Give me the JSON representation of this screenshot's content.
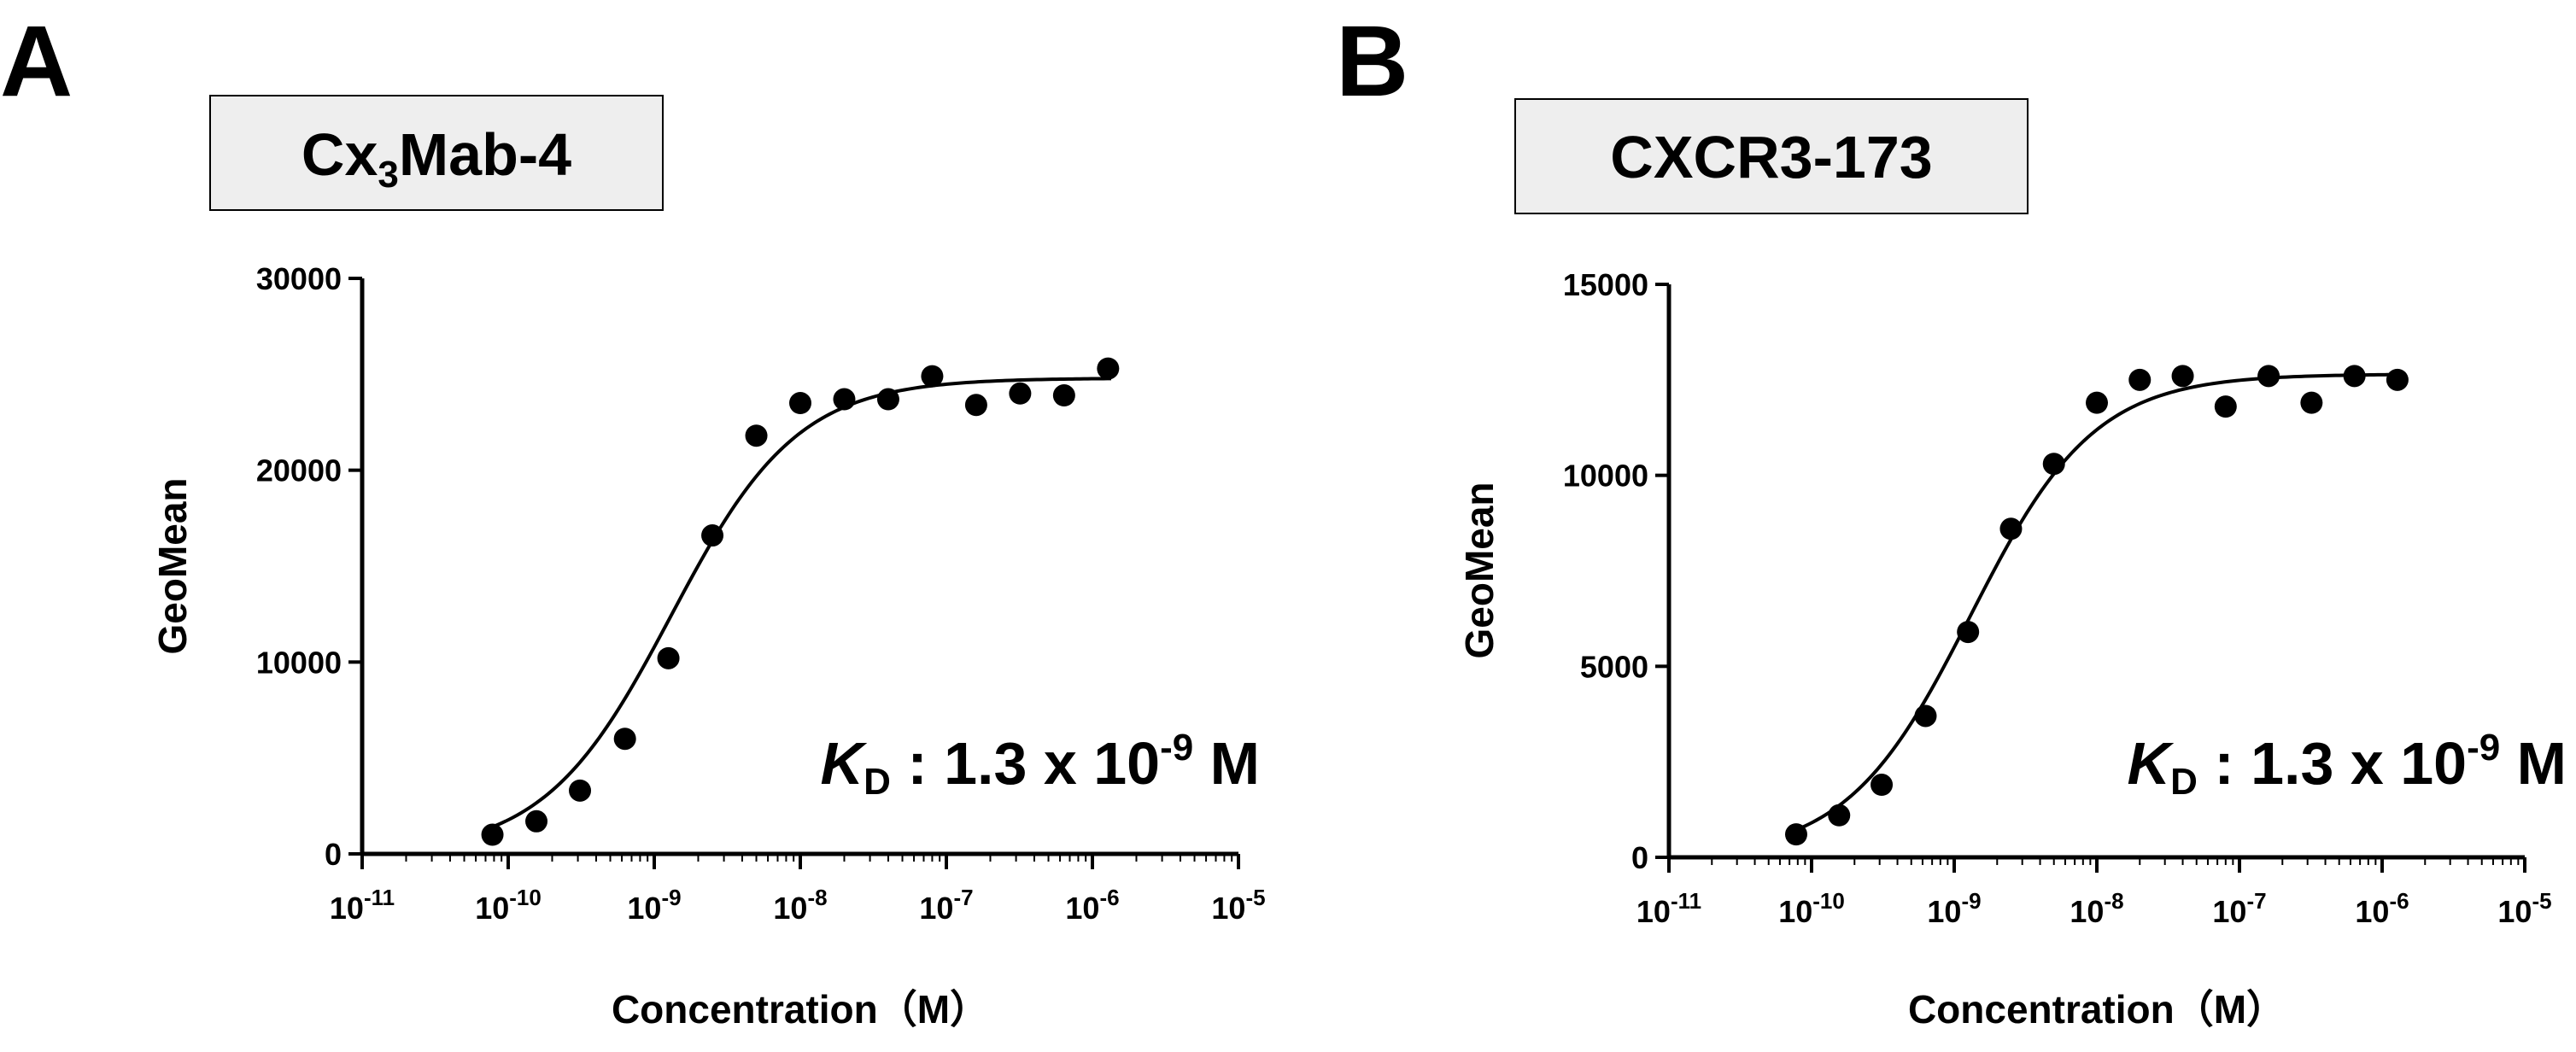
{
  "chart_data": [
    {
      "type": "scatter",
      "panel": "A",
      "title_base": "Cx",
      "title_sub": "3",
      "title_rest": "Mab-4",
      "ylabel": "GeoMean",
      "xlabel": "Concentration（M）",
      "x_scale": "log",
      "x_exponents": [
        -11,
        -10,
        -9,
        -8,
        -7,
        -6,
        -5
      ],
      "xlim": [
        1e-11,
        1e-05
      ],
      "y_ticks": [
        "0",
        "10000",
        "20000",
        "30000"
      ],
      "ylim": [
        0,
        30000
      ],
      "kd": {
        "symbol": "K",
        "subscript": "D",
        "text": " : 1.3 x 10",
        "exponent": "-9",
        "unit": " M"
      },
      "points": [
        {
          "x": 7.8e-11,
          "y": 1000
        },
        {
          "x": 1.56e-10,
          "y": 1700
        },
        {
          "x": 3.1e-10,
          "y": 3300
        },
        {
          "x": 6.3e-10,
          "y": 6000
        },
        {
          "x": 1.25e-09,
          "y": 10200
        },
        {
          "x": 2.5e-09,
          "y": 16600
        },
        {
          "x": 5e-09,
          "y": 21800
        },
        {
          "x": 1e-08,
          "y": 23500
        },
        {
          "x": 2e-08,
          "y": 23700
        },
        {
          "x": 4e-08,
          "y": 23700
        },
        {
          "x": 8e-08,
          "y": 24900
        },
        {
          "x": 1.6e-07,
          "y": 23400
        },
        {
          "x": 3.2e-07,
          "y": 24000
        },
        {
          "x": 6.4e-07,
          "y": 23900
        },
        {
          "x": 1.28e-06,
          "y": 25300
        }
      ],
      "fit": {
        "bmax": 24800,
        "kd": 1.3e-09
      }
    },
    {
      "type": "scatter",
      "panel": "B",
      "title_base": "CXCR3-173",
      "title_sub": "",
      "title_rest": "",
      "ylabel": "GeoMean",
      "xlabel": "Concentration（M）",
      "x_scale": "log",
      "x_exponents": [
        -11,
        -10,
        -9,
        -8,
        -7,
        -6,
        -5
      ],
      "xlim": [
        1e-11,
        1e-05
      ],
      "y_ticks": [
        "0",
        "5000",
        "10000",
        "15000"
      ],
      "ylim": [
        0,
        15000
      ],
      "kd": {
        "symbol": "K",
        "subscript": "D",
        "text": " : 1.3 x 10",
        "exponent": "-9",
        "unit": " M"
      },
      "points": [
        {
          "x": 7.8e-11,
          "y": 600
        },
        {
          "x": 1.56e-10,
          "y": 1100
        },
        {
          "x": 3.1e-10,
          "y": 1900
        },
        {
          "x": 6.3e-10,
          "y": 3700
        },
        {
          "x": 1.25e-09,
          "y": 5900
        },
        {
          "x": 2.5e-09,
          "y": 8600
        },
        {
          "x": 5e-09,
          "y": 10300
        },
        {
          "x": 1e-08,
          "y": 11900
        },
        {
          "x": 2e-08,
          "y": 12500
        },
        {
          "x": 4e-08,
          "y": 12600
        },
        {
          "x": 8e-08,
          "y": 11800
        },
        {
          "x": 1.6e-07,
          "y": 12600
        },
        {
          "x": 3.2e-07,
          "y": 11900
        },
        {
          "x": 6.4e-07,
          "y": 12600
        },
        {
          "x": 1.28e-06,
          "y": 12500
        }
      ],
      "fit": {
        "bmax": 12650,
        "kd": 1.3e-09
      }
    }
  ]
}
